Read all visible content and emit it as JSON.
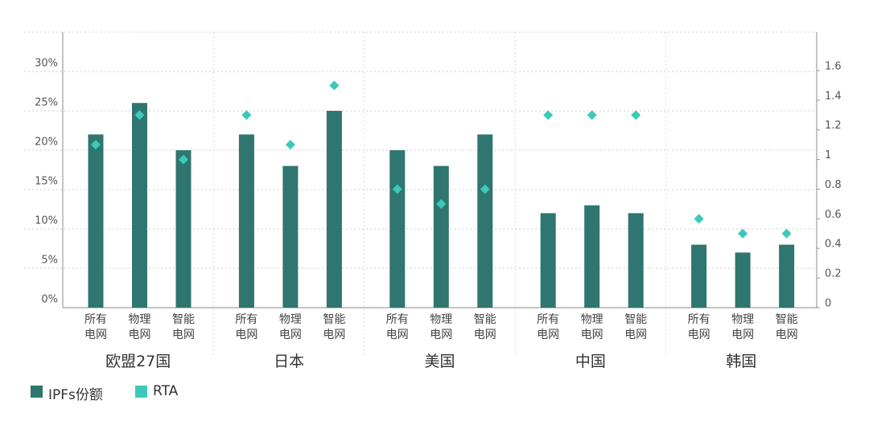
{
  "chart_data": {
    "type": "bar",
    "groups": [
      "欧盟27国",
      "日本",
      "美国",
      "中国",
      "韩国"
    ],
    "categories": [
      "所有电网",
      "物理电网",
      "智能电网",
      "所有电网",
      "物理电网",
      "智能电网",
      "所有电网",
      "物理电网",
      "智能电网",
      "所有电网",
      "物理电网",
      "智能电网",
      "所有电网",
      "物理电网",
      "智能电网"
    ],
    "series": [
      {
        "name": "IPFs份额",
        "color": "#2f7570",
        "values": [
          22,
          26,
          20,
          22,
          18,
          25,
          20,
          18,
          22,
          12,
          13,
          12,
          8,
          7,
          8
        ]
      },
      {
        "name": "RTA",
        "color": "#3cc9b9",
        "axis": "y2",
        "marker": "diamond",
        "values": [
          1.1,
          1.3,
          1.0,
          1.3,
          1.1,
          1.5,
          0.8,
          0.7,
          0.8,
          1.3,
          1.3,
          1.3,
          0.6,
          0.5,
          0.5
        ]
      }
    ],
    "ylim": [
      0,
      35
    ],
    "yticks": [
      {
        "value": 0,
        "label": "0%"
      },
      {
        "value": 5,
        "label": "5%"
      },
      {
        "value": 10,
        "label": "10%"
      },
      {
        "value": 15,
        "label": "15%"
      },
      {
        "value": 20,
        "label": "20%"
      },
      {
        "value": 25,
        "label": "25%"
      },
      {
        "value": 30,
        "label": "30%"
      }
    ],
    "y2lim": [
      0,
      1.86
    ],
    "y2ticks": [
      0,
      0.2,
      0.4,
      0.6,
      0.8,
      1,
      1.2,
      1.4,
      1.6
    ],
    "grid": true
  }
}
